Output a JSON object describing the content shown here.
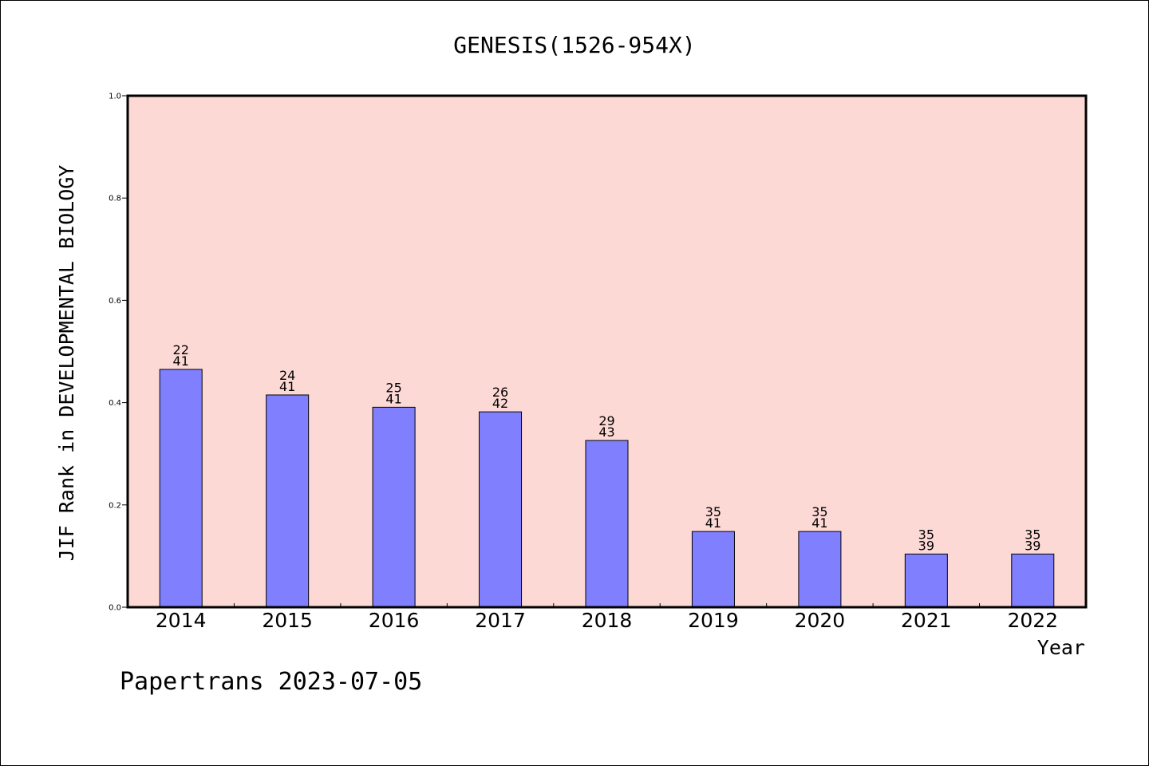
{
  "chart_data": {
    "type": "bar",
    "title": "GENESIS(1526-954X)",
    "xlabel": "Year",
    "ylabel": "JIF Rank in DEVELOPMENTAL BIOLOGY",
    "ylim": [
      0,
      1.0
    ],
    "yticks": [
      "0.0",
      "0.2",
      "0.4",
      "0.6",
      "0.8",
      "1.0"
    ],
    "grid": false,
    "legend": "none",
    "categories": [
      "2014",
      "2015",
      "2016",
      "2017",
      "2018",
      "2019",
      "2020",
      "2021",
      "2022"
    ],
    "values": [
      0.465,
      0.415,
      0.391,
      0.382,
      0.326,
      0.148,
      0.148,
      0.104,
      0.104
    ],
    "labels": [
      {
        "rank": "22",
        "total": "41"
      },
      {
        "rank": "24",
        "total": "41"
      },
      {
        "rank": "25",
        "total": "41"
      },
      {
        "rank": "26",
        "total": "42"
      },
      {
        "rank": "29",
        "total": "43"
      },
      {
        "rank": "35",
        "total": "41"
      },
      {
        "rank": "35",
        "total": "41"
      },
      {
        "rank": "35",
        "total": "39"
      },
      {
        "rank": "35",
        "total": "39"
      }
    ],
    "colors": {
      "plot_background": "#fdd9d6",
      "bar_fill": "#8080ff",
      "bar_stroke": "#000000"
    }
  },
  "footer": "Papertrans 2023-07-05"
}
